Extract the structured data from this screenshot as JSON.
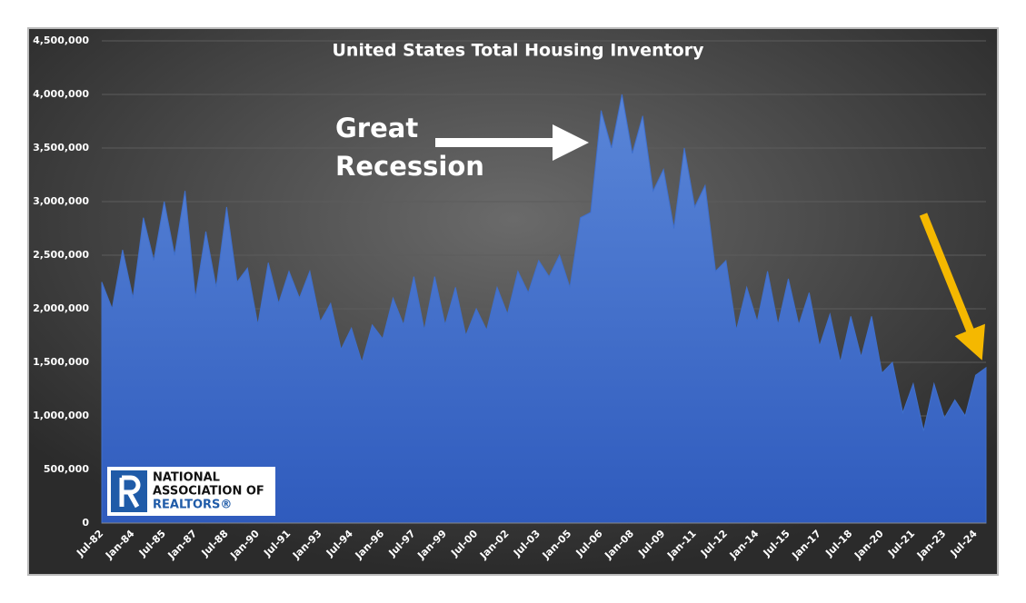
{
  "chart_data": {
    "type": "area",
    "title": "United States Total Housing Inventory",
    "annotations": [
      "Great",
      "Recession"
    ],
    "logo": [
      "NATIONAL",
      "ASSOCIATION OF",
      "REALTORS®"
    ],
    "categories": [
      "Jul-82",
      null,
      null,
      "Jan-84",
      null,
      null,
      "Jul-85",
      null,
      null,
      "Jan-87",
      null,
      null,
      "Jul-88",
      null,
      null,
      "Jan-90",
      null,
      null,
      "Jul-91",
      null,
      null,
      "Jan-93",
      null,
      null,
      "Jul-94",
      null,
      null,
      "Jan-96",
      null,
      null,
      "Jul-97",
      null,
      null,
      "Jan-99",
      null,
      null,
      "Jul-00",
      null,
      null,
      "Jan-02",
      null,
      null,
      "Jul-03",
      null,
      null,
      "Jan-05",
      null,
      null,
      "Jul-06",
      null,
      null,
      "Jan-08",
      null,
      null,
      "Jul-09",
      null,
      null,
      "Jan-11",
      null,
      null,
      "Jul-12",
      null,
      null,
      "Jan-14",
      null,
      null,
      "Jul-15",
      null,
      null,
      "Jan-17",
      null,
      null,
      "Jul-18",
      null,
      null,
      "Jan-20",
      null,
      null,
      "Jul-21",
      null,
      null,
      "Jan-23",
      null,
      null,
      "Jul-24",
      null
    ],
    "values": [
      2250000,
      2000000,
      2550000,
      2100000,
      2850000,
      2450000,
      3000000,
      2500000,
      3100000,
      2100000,
      2720000,
      2200000,
      2950000,
      2250000,
      2380000,
      1850000,
      2430000,
      2050000,
      2350000,
      2100000,
      2350000,
      1880000,
      2050000,
      1620000,
      1820000,
      1500000,
      1850000,
      1720000,
      2100000,
      1850000,
      2300000,
      1800000,
      2300000,
      1850000,
      2200000,
      1750000,
      2000000,
      1800000,
      2200000,
      1950000,
      2350000,
      2150000,
      2450000,
      2300000,
      2500000,
      2200000,
      2850000,
      2900000,
      3850000,
      3500000,
      4000000,
      3450000,
      3800000,
      3100000,
      3300000,
      2750000,
      3500000,
      2950000,
      3150000,
      2350000,
      2450000,
      1800000,
      2200000,
      1880000,
      2350000,
      1850000,
      2280000,
      1850000,
      2150000,
      1650000,
      1950000,
      1500000,
      1930000,
      1550000,
      1930000,
      1400000,
      1500000,
      1030000,
      1300000,
      860000,
      1300000,
      980000,
      1150000,
      1000000,
      1380000,
      1450000
    ],
    "color": "#3f6fcc",
    "ylim": [
      0,
      4500000
    ],
    "yticks": [
      0,
      {
        "value": 500000,
        "label": "500,000"
      },
      {
        "value": 1000000,
        "label": "1,000,000"
      },
      {
        "value": 1500000,
        "label": "1,500,000"
      },
      {
        "value": 2000000,
        "label": "2,000,000"
      },
      {
        "value": 2500000,
        "label": "2,500,000"
      },
      {
        "value": 3000000,
        "label": "3,000,000"
      },
      {
        "value": 3500000,
        "label": "3,500,000"
      },
      {
        "value": 4000000,
        "label": "4,000,000"
      },
      {
        "value": 4500000,
        "label": "4,500,000"
      }
    ],
    "grid": true
  }
}
